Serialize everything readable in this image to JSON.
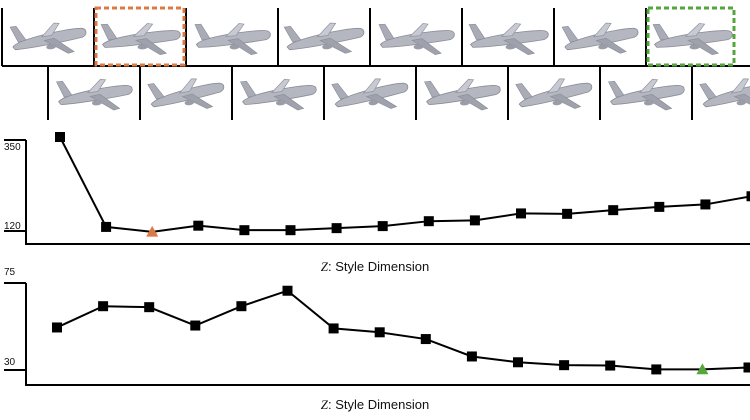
{
  "colors": {
    "line": "#000000",
    "orange": "#dc7a46",
    "green": "#55a63c",
    "plane": "#b4b6c0"
  },
  "thumbnails": {
    "row1_count": 8,
    "row2_count": 8,
    "highlight_orange_index": 1,
    "highlight_green_index": 7
  },
  "xlabel": {
    "var": "Z",
    "text": ": Style Dimension"
  },
  "chart_data": [
    {
      "type": "line",
      "name": "top",
      "x": [
        1,
        2,
        3,
        4,
        5,
        6,
        7,
        8,
        9,
        10,
        11,
        12,
        13,
        14,
        15,
        16
      ],
      "values": [
        350,
        130,
        118,
        133,
        122,
        122,
        127,
        132,
        144,
        146,
        163,
        162,
        171,
        179,
        185,
        205
      ],
      "highlight_index": 2,
      "highlight_color": "orange",
      "ytick_labels": [
        "350",
        "120"
      ],
      "yticks": [
        350,
        120
      ],
      "ylim": [
        120,
        350
      ],
      "grid": false
    },
    {
      "type": "line",
      "name": "bottom",
      "x": [
        1,
        2,
        3,
        4,
        5,
        6,
        7,
        8,
        9,
        10,
        11,
        12,
        13,
        14,
        15,
        16
      ],
      "values": [
        52,
        63,
        62.5,
        53,
        63,
        71,
        51.5,
        49.5,
        46,
        37,
        34,
        32.5,
        32.3,
        30.3,
        30.3,
        31.3
      ],
      "highlight_index": 14,
      "highlight_color": "green",
      "ytick_labels": [
        "75",
        "30"
      ],
      "yticks": [
        75,
        30
      ],
      "ylim": [
        30,
        75
      ],
      "grid": false
    }
  ]
}
